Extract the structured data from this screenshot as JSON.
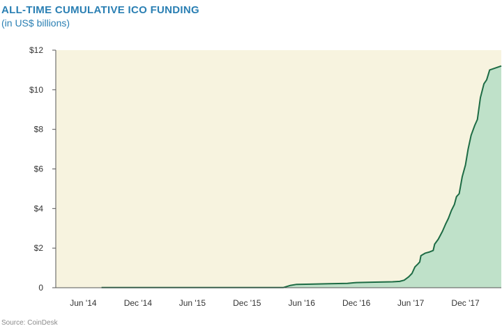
{
  "title": "ALL-TIME CUMULATIVE ICO FUNDING",
  "subtitle": "(in US$ billions)",
  "source": "Source: CoinDesk",
  "colors": {
    "title": "#2a7fb3",
    "plot_background": "#f7f3df",
    "line": "#1d6b44",
    "area_fill": "#bfe1c9",
    "axis": "#555555"
  },
  "chart_data": {
    "type": "area",
    "title": "ALL-TIME CUMULATIVE ICO FUNDING",
    "subtitle": "(in US$ billions)",
    "xlabel": "",
    "ylabel": "",
    "x_tick_labels": [
      "Jun '14",
      "Dec '14",
      "Jun '15",
      "Dec '15",
      "Jun '16",
      "Dec '16",
      "Jun '17",
      "Dec '17"
    ],
    "x_tick_dates": [
      "2014-06-01",
      "2014-12-01",
      "2015-06-01",
      "2015-12-01",
      "2016-06-01",
      "2016-12-01",
      "2017-06-01",
      "2017-12-01"
    ],
    "y_tick_labels": [
      "0",
      "$2",
      "$4",
      "$6",
      "$8",
      "$10",
      "$12"
    ],
    "y_tick_values": [
      0,
      2,
      4,
      6,
      8,
      10,
      12
    ],
    "xlim": [
      "2014-03-01",
      "2018-03-31"
    ],
    "ylim": [
      0,
      12
    ],
    "grid": false,
    "legend": "none",
    "series": [
      {
        "points": [
          [
            "2014-08-01",
            0.01
          ],
          [
            "2015-06-01",
            0.01
          ],
          [
            "2016-04-01",
            0.01
          ],
          [
            "2016-04-25",
            0.12
          ],
          [
            "2016-05-15",
            0.17
          ],
          [
            "2016-07-01",
            0.18
          ],
          [
            "2016-09-01",
            0.2
          ],
          [
            "2016-11-01",
            0.22
          ],
          [
            "2016-12-01",
            0.26
          ],
          [
            "2017-02-01",
            0.28
          ],
          [
            "2017-04-01",
            0.3
          ],
          [
            "2017-04-25",
            0.32
          ],
          [
            "2017-05-10",
            0.38
          ],
          [
            "2017-05-25",
            0.55
          ],
          [
            "2017-06-05",
            0.72
          ],
          [
            "2017-06-15",
            1.05
          ],
          [
            "2017-06-25",
            1.2
          ],
          [
            "2017-07-01",
            1.3
          ],
          [
            "2017-07-05",
            1.62
          ],
          [
            "2017-07-20",
            1.75
          ],
          [
            "2017-08-01",
            1.8
          ],
          [
            "2017-08-15",
            1.88
          ],
          [
            "2017-08-20",
            2.2
          ],
          [
            "2017-09-01",
            2.45
          ],
          [
            "2017-09-15",
            2.85
          ],
          [
            "2017-09-25",
            3.2
          ],
          [
            "2017-10-05",
            3.5
          ],
          [
            "2017-10-15",
            3.9
          ],
          [
            "2017-10-25",
            4.2
          ],
          [
            "2017-11-01",
            4.6
          ],
          [
            "2017-11-10",
            4.75
          ],
          [
            "2017-11-20",
            5.6
          ],
          [
            "2017-12-01",
            6.2
          ],
          [
            "2017-12-10",
            7.0
          ],
          [
            "2017-12-20",
            7.7
          ],
          [
            "2018-01-01",
            8.2
          ],
          [
            "2018-01-10",
            8.5
          ],
          [
            "2018-01-20",
            9.6
          ],
          [
            "2018-02-01",
            10.3
          ],
          [
            "2018-02-10",
            10.5
          ],
          [
            "2018-02-20",
            11.0
          ],
          [
            "2018-03-31",
            11.2
          ]
        ]
      }
    ]
  }
}
